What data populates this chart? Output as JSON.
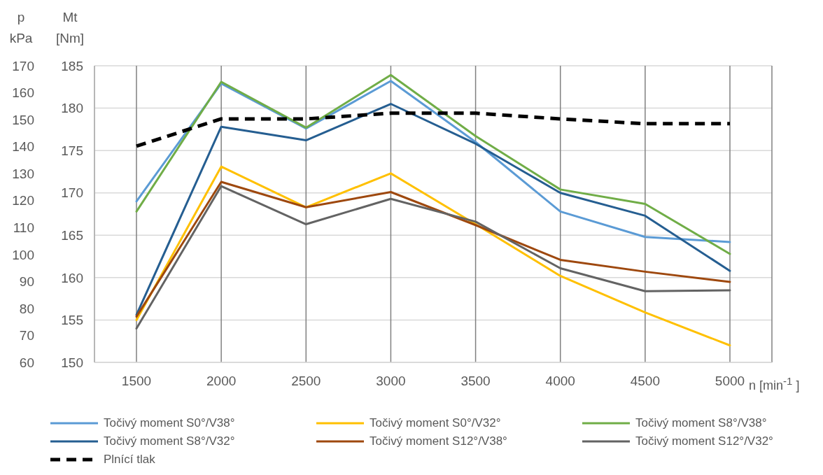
{
  "chart_data": {
    "type": "line",
    "categories": [
      "1500",
      "2000",
      "2500",
      "3000",
      "3500",
      "4000",
      "4500",
      "5000"
    ],
    "xlabel": "n [min$^{-1}$ ]",
    "ylabel": "Mt [Nm]",
    "y2label": "p kPa",
    "ylim": [
      150,
      185
    ],
    "yticks": [
      150,
      155,
      160,
      165,
      170,
      175,
      180,
      185
    ],
    "y2lim": [
      60,
      170
    ],
    "y2ticks": [
      60,
      70,
      80,
      90,
      100,
      110,
      120,
      130,
      140,
      150,
      160,
      170
    ],
    "grid": true,
    "legend": "bottom",
    "marker": "none",
    "line_style": "solid",
    "series": [
      {
        "name": "Točivý moment S0°/V38°",
        "color": "#5b9bd5",
        "values": [
          169.0,
          182.9,
          177.6,
          183.2,
          176.0,
          167.8,
          164.8,
          164.2
        ]
      },
      {
        "name": "Točivý moment S0°/V32°",
        "color": "#ffc000",
        "values": [
          155.0,
          173.1,
          168.3,
          172.3,
          166.3,
          160.2,
          155.9,
          152.0
        ]
      },
      {
        "name": "Točivý moment S8°/V38°",
        "color": "#70ad47",
        "values": [
          167.8,
          183.1,
          177.7,
          183.9,
          176.7,
          170.4,
          168.7,
          162.8
        ]
      },
      {
        "name": "Točivý moment S8°/V32°",
        "color": "#255e91",
        "values": [
          155.6,
          177.8,
          176.2,
          180.5,
          175.8,
          170.0,
          167.3,
          160.8
        ]
      },
      {
        "name": "Točivý moment S12°/V38°",
        "color": "#9e480e",
        "values": [
          155.4,
          171.3,
          168.3,
          170.1,
          166.2,
          162.1,
          160.7,
          159.5
        ]
      },
      {
        "name": "Točivý moment S12°/V32°",
        "color": "#636363",
        "values": [
          154.0,
          170.8,
          166.3,
          169.3,
          166.6,
          161.1,
          158.4,
          158.5
        ]
      },
      {
        "name": "Plnící tlak",
        "color": "#000000",
        "axis": "y2",
        "line_style": "dashed",
        "values": [
          140.2,
          150.3,
          150.3,
          152.4,
          152.4,
          150.3,
          148.5,
          148.5
        ]
      }
    ]
  }
}
